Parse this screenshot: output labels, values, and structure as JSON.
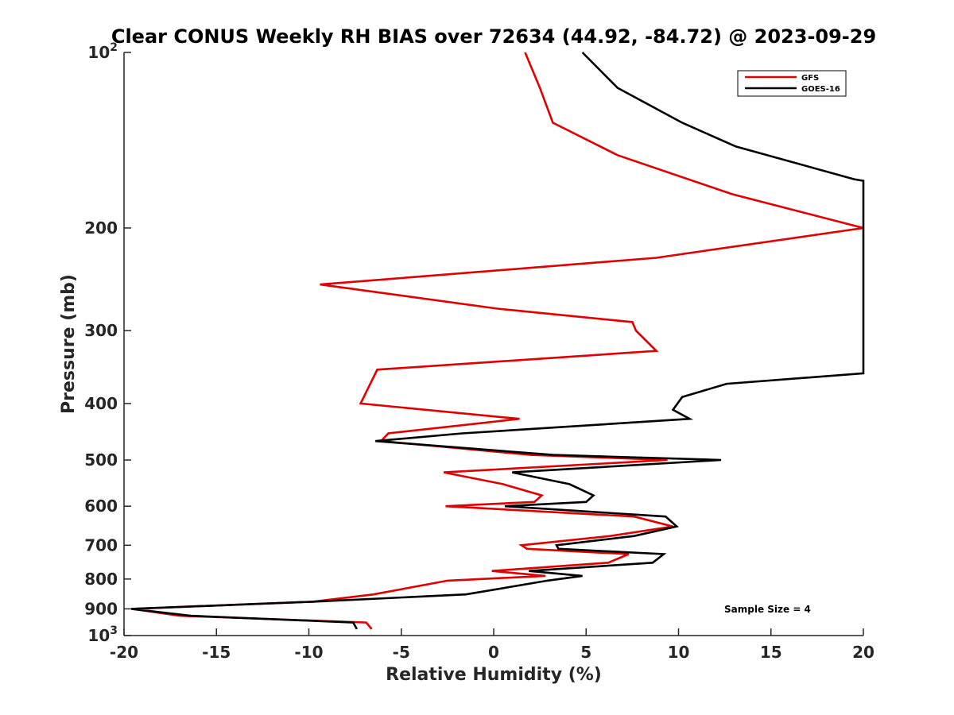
{
  "chart_data": {
    "type": "line",
    "title": "Clear CONUS Weekly RH BIAS over 72634 (44.92, -84.72) @ 2023-09-29",
    "xlabel": "Relative Humidity (%)",
    "ylabel": "Pressure (mb)",
    "xlim": [
      -20,
      20
    ],
    "ylim": [
      100,
      1000
    ],
    "yscale": "log",
    "y_reversed": true,
    "grid": false,
    "x_ticks": [
      -20,
      -15,
      -10,
      -5,
      0,
      5,
      10,
      15,
      20
    ],
    "x_tick_labels": [
      "-20",
      "-15",
      "-10",
      "-5",
      "0",
      "5",
      "10",
      "15",
      "20"
    ],
    "y_ticks": [
      100,
      200,
      300,
      400,
      500,
      600,
      700,
      800,
      900,
      1000
    ],
    "y_tick_labels": [
      {
        "base": "10",
        "exp": "2"
      },
      {
        "base": "200",
        "exp": ""
      },
      {
        "base": "300",
        "exp": ""
      },
      {
        "base": "400",
        "exp": ""
      },
      {
        "base": "500",
        "exp": ""
      },
      {
        "base": "600",
        "exp": ""
      },
      {
        "base": "700",
        "exp": ""
      },
      {
        "base": "800",
        "exp": ""
      },
      {
        "base": "900",
        "exp": ""
      },
      {
        "base": "10",
        "exp": "3"
      }
    ],
    "legend_position": "top-right",
    "annotation": "Sample Size = 4",
    "series": [
      {
        "name": "GFS",
        "color": "#e00000",
        "points": [
          [
            1.7,
            100
          ],
          [
            2.5,
            115
          ],
          [
            3.2,
            132
          ],
          [
            6.7,
            150
          ],
          [
            12.9,
            175
          ],
          [
            20.0,
            200
          ],
          [
            8.8,
            225
          ],
          [
            -9.4,
            250
          ],
          [
            0.2,
            275
          ],
          [
            7.5,
            290
          ],
          [
            7.7,
            300
          ],
          [
            8.8,
            325
          ],
          [
            -6.3,
            350
          ],
          [
            -7.2,
            400
          ],
          [
            1.4,
            425
          ],
          [
            -5.7,
            450
          ],
          [
            -6.1,
            464
          ],
          [
            2.0,
            490
          ],
          [
            9.4,
            500
          ],
          [
            -2.7,
            525
          ],
          [
            0.5,
            550
          ],
          [
            2.6,
            575
          ],
          [
            2.2,
            590
          ],
          [
            -2.6,
            600
          ],
          [
            7.6,
            625
          ],
          [
            9.7,
            650
          ],
          [
            6.3,
            675
          ],
          [
            1.5,
            700
          ],
          [
            1.8,
            710
          ],
          [
            7.3,
            725
          ],
          [
            6.2,
            750
          ],
          [
            -0.1,
            775
          ],
          [
            2.8,
            790
          ],
          [
            -2.5,
            805
          ],
          [
            -6.5,
            850
          ],
          [
            -9.8,
            875
          ],
          [
            -19.6,
            900
          ],
          [
            -17.0,
            925
          ],
          [
            -6.9,
            950
          ],
          [
            -6.6,
            975
          ]
        ]
      },
      {
        "name": "GOES-16",
        "color": "#000000",
        "points": [
          [
            4.8,
            100
          ],
          [
            6.7,
            115
          ],
          [
            10.2,
            132
          ],
          [
            13.1,
            145
          ],
          [
            19.5,
            165
          ],
          [
            20.0,
            166
          ],
          [
            20.0,
            355
          ],
          [
            12.6,
            370
          ],
          [
            10.2,
            390
          ],
          [
            9.7,
            410
          ],
          [
            10.6,
            425
          ],
          [
            -1.7,
            450
          ],
          [
            -6.4,
            464
          ],
          [
            3.2,
            490
          ],
          [
            12.3,
            500
          ],
          [
            1.0,
            525
          ],
          [
            4.1,
            550
          ],
          [
            5.4,
            575
          ],
          [
            5.0,
            590
          ],
          [
            0.6,
            600
          ],
          [
            9.3,
            625
          ],
          [
            9.9,
            650
          ],
          [
            7.6,
            675
          ],
          [
            3.4,
            700
          ],
          [
            3.5,
            710
          ],
          [
            9.2,
            725
          ],
          [
            8.6,
            750
          ],
          [
            1.9,
            775
          ],
          [
            4.8,
            790
          ],
          [
            2.9,
            805
          ],
          [
            -1.5,
            850
          ],
          [
            -9.8,
            875
          ],
          [
            -19.6,
            900
          ],
          [
            -16.4,
            925
          ],
          [
            -7.6,
            950
          ],
          [
            -7.4,
            975
          ]
        ]
      }
    ]
  }
}
